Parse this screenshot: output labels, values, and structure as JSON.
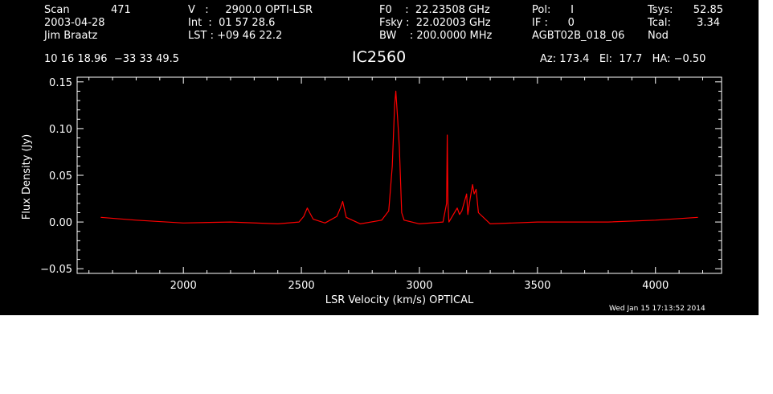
{
  "header": {
    "scan_label": "Scan",
    "scan_number": "471",
    "date": "2003-04-28",
    "observer": "Jim Braatz",
    "velocity": "V   :     2900.0 OPTI-LSR",
    "int_time": "Int  :  01 57 28.6",
    "lst": "LST : +09 46 22.2",
    "f0": "F0    :  22.23508 GHz",
    "fsky": "Fsky :  22.02003 GHz",
    "bw": "BW    : 200.0000 MHz",
    "pol": "Pol:      I",
    "if": "IF :      0",
    "project": "AGBT02B_018_06",
    "tsys_label": "Tsys:",
    "tsys_value": "52.85",
    "tcal_label": "Tcal:",
    "tcal_value": "3.34",
    "procedure": "Nod",
    "coords": "10 16 18.96  −33 33 49.5",
    "source": "IC2560",
    "azelha": "Az: 173.4   El:  17.7   HA: −0.50",
    "timestamp": "Wed Jan 15 17:13:52 2014"
  },
  "colors": {
    "background": "#000000",
    "axes": "#ffffff",
    "trace": "#ff0000"
  },
  "chart_data": {
    "type": "line",
    "title": "IC2560",
    "xlabel": "LSR Velocity (km/s) OPTICAL",
    "ylabel": "Flux Density (Jy)",
    "xlim": [
      1550,
      4280
    ],
    "ylim": [
      -0.055,
      0.155
    ],
    "xticks": [
      2000,
      2500,
      3000,
      3500,
      4000
    ],
    "xtick_labels": [
      "2000",
      "2500",
      "3000",
      "3500",
      "4000"
    ],
    "yticks": [
      -0.05,
      0.0,
      0.05,
      0.1,
      0.15
    ],
    "ytick_labels": [
      "−0.05",
      "0.00",
      "0.05",
      "0.10",
      "0.15"
    ],
    "grid": false,
    "series": [
      {
        "x": [
          1650,
          1800,
          2000,
          2200,
          2400,
          2490,
          2510,
          2525,
          2535,
          2550,
          2600,
          2650,
          2665,
          2675,
          2690,
          2750,
          2840,
          2870,
          2885,
          2895,
          2900,
          2908,
          2915,
          2925,
          2935,
          3000,
          3100,
          3115,
          3118,
          3121,
          3125,
          3160,
          3170,
          3180,
          3200,
          3205,
          3215,
          3225,
          3232,
          3240,
          3250,
          3300,
          3500,
          3800,
          4000,
          4180
        ],
        "y": [
          0.005,
          0.002,
          -0.001,
          0.0,
          -0.002,
          0.0,
          0.006,
          0.015,
          0.01,
          0.003,
          -0.001,
          0.006,
          0.015,
          0.022,
          0.005,
          -0.002,
          0.002,
          0.012,
          0.06,
          0.125,
          0.14,
          0.11,
          0.08,
          0.01,
          0.002,
          -0.002,
          0.0,
          0.02,
          0.093,
          0.02,
          0.0,
          0.015,
          0.008,
          0.012,
          0.03,
          0.008,
          0.025,
          0.04,
          0.03,
          0.035,
          0.01,
          -0.002,
          0.0,
          0.0,
          0.002,
          0.005
        ]
      }
    ]
  }
}
